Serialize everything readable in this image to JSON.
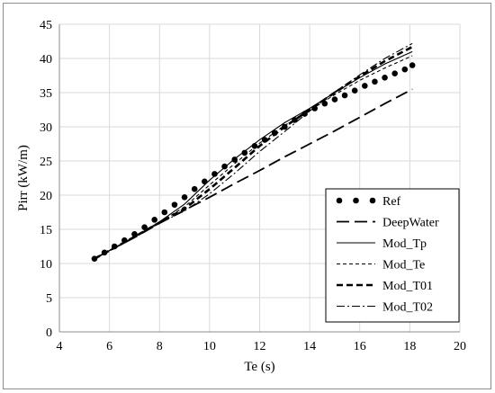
{
  "chart_data": {
    "type": "line",
    "xlabel": "Te (s)",
    "ylabel": "Pirr (kW/m)",
    "xlim": [
      4,
      20
    ],
    "ylim": [
      0,
      45
    ],
    "xticks": [
      4,
      6,
      8,
      10,
      12,
      14,
      16,
      18,
      20
    ],
    "yticks": [
      0,
      5,
      10,
      15,
      20,
      25,
      30,
      35,
      40,
      45
    ],
    "grid": true,
    "legend_position": "bottom-right",
    "series": [
      {
        "name": "Ref",
        "style": "dots",
        "x": [
          5.4,
          5.8,
          6.2,
          6.6,
          7.0,
          7.4,
          7.8,
          8.2,
          8.6,
          9.0,
          9.4,
          9.8,
          10.2,
          10.6,
          11.0,
          11.4,
          11.8,
          12.2,
          12.6,
          13.0,
          13.4,
          13.8,
          14.2,
          14.6,
          15.0,
          15.4,
          15.8,
          16.2,
          16.6,
          17.0,
          17.4,
          17.8,
          18.1
        ],
        "y": [
          10.7,
          11.6,
          12.5,
          13.4,
          14.3,
          15.3,
          16.4,
          17.5,
          18.6,
          19.7,
          20.9,
          22.0,
          23.1,
          24.2,
          25.2,
          26.2,
          27.2,
          28.1,
          29.1,
          30.0,
          31.0,
          31.9,
          32.7,
          33.4,
          34.0,
          34.6,
          35.3,
          36.0,
          36.6,
          37.2,
          37.8,
          38.4,
          39.0
        ]
      },
      {
        "name": "DeepWater",
        "style": "longdash",
        "x": [
          5.4,
          6,
          7,
          8,
          9,
          10,
          11,
          12,
          13,
          14,
          15,
          16,
          17,
          18.1
        ],
        "y": [
          10.7,
          11.9,
          13.8,
          15.9,
          17.8,
          19.7,
          21.7,
          23.6,
          25.6,
          27.5,
          29.4,
          31.4,
          33.4,
          35.5
        ]
      },
      {
        "name": "Mod_Tp",
        "style": "solid",
        "x": [
          5.4,
          6,
          7,
          8,
          9,
          10,
          11,
          12,
          13,
          14,
          15,
          16,
          17,
          18.1
        ],
        "y": [
          10.7,
          11.9,
          13.9,
          16.1,
          18.7,
          22.2,
          25.3,
          28.1,
          30.6,
          32.7,
          35.0,
          37.2,
          39.2,
          41.0
        ]
      },
      {
        "name": "Mod_Te",
        "style": "shortdash",
        "x": [
          5.4,
          6,
          7,
          8,
          9,
          10,
          11,
          12,
          13,
          14,
          15,
          16,
          17,
          18.1
        ],
        "y": [
          10.7,
          11.9,
          13.9,
          16.0,
          18.3,
          21.5,
          24.6,
          27.6,
          30.2,
          32.4,
          34.7,
          36.8,
          38.6,
          40.4
        ]
      },
      {
        "name": "Mod_T01",
        "style": "thickdash",
        "x": [
          5.4,
          6,
          7,
          8,
          9,
          10,
          11,
          12,
          13,
          14,
          15,
          16,
          17,
          18.1
        ],
        "y": [
          10.7,
          11.9,
          13.9,
          16.0,
          18.0,
          20.9,
          24.0,
          27.2,
          30.0,
          32.5,
          35.0,
          37.4,
          39.6,
          41.7
        ]
      },
      {
        "name": "Mod_T02",
        "style": "dashdot",
        "x": [
          5.4,
          6,
          7,
          8,
          9,
          10,
          11,
          12,
          13,
          14,
          15,
          16,
          17,
          18.1
        ],
        "y": [
          10.7,
          11.9,
          13.9,
          15.9,
          17.7,
          20.2,
          23.2,
          26.4,
          29.3,
          32.3,
          35.1,
          37.6,
          40.0,
          42.2
        ]
      }
    ]
  }
}
